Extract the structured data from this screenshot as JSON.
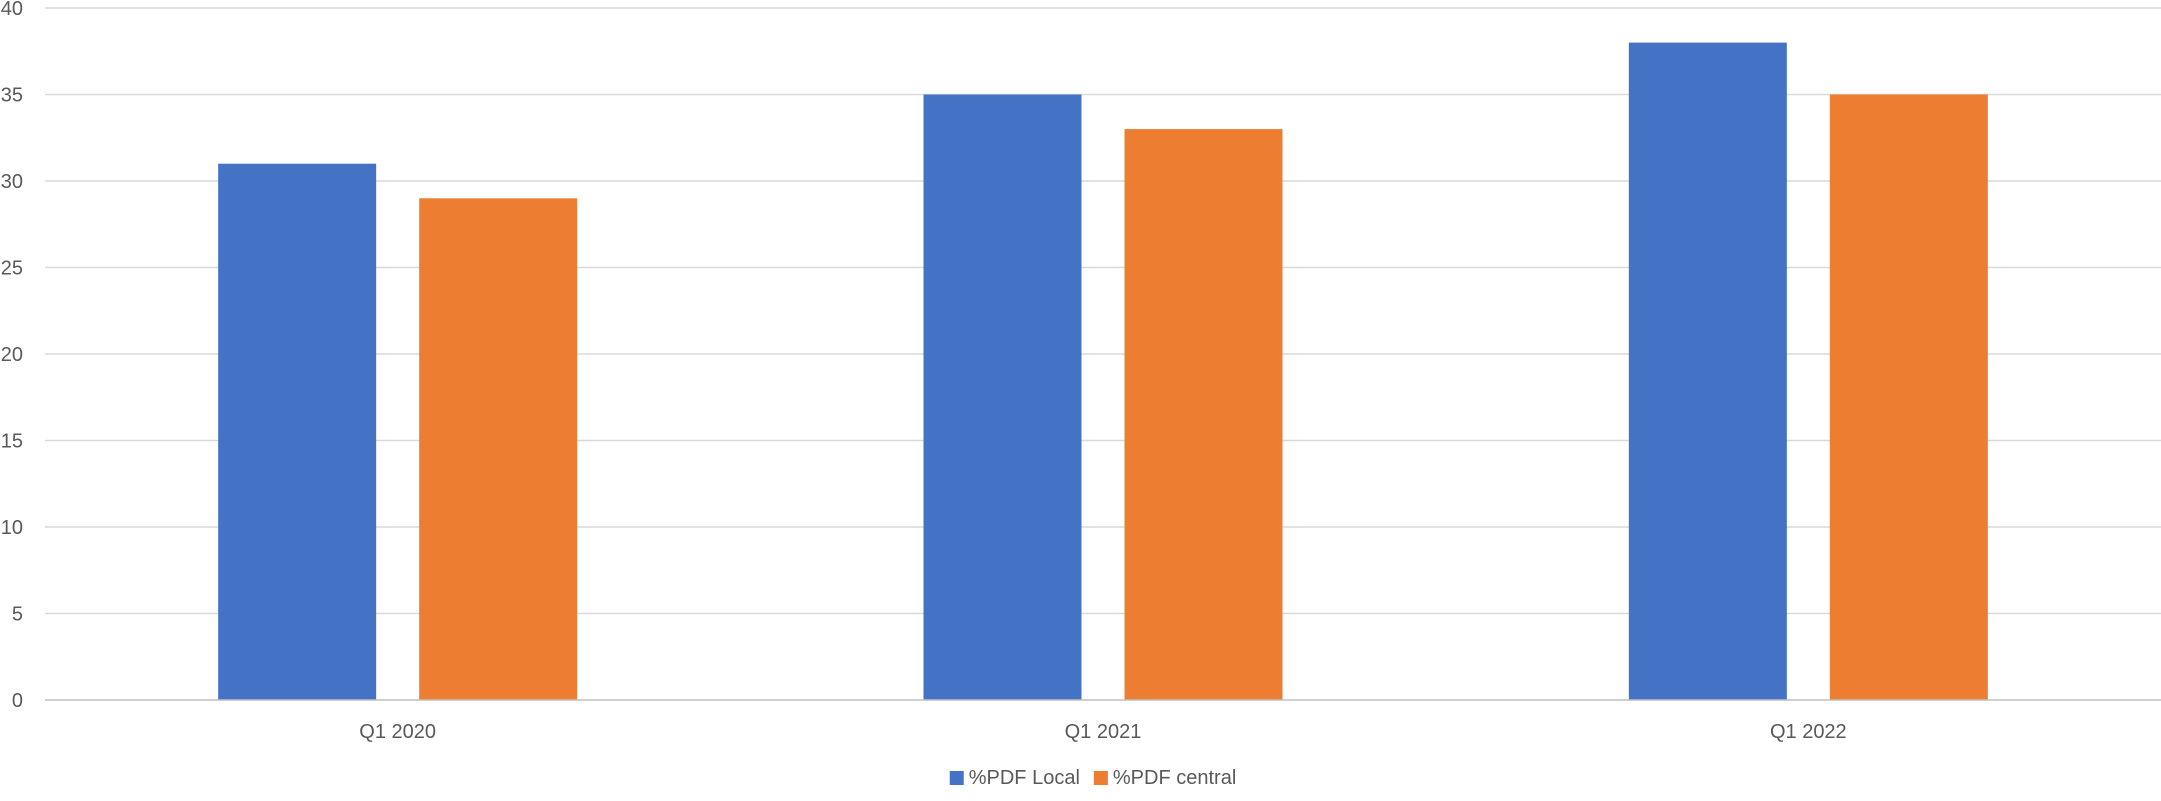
{
  "chart_data": {
    "type": "bar",
    "title": "",
    "xlabel": "",
    "ylabel": "",
    "categories": [
      "Q1 2020",
      "Q1 2021",
      "Q1 2022"
    ],
    "series": [
      {
        "name": "%PDF Local",
        "values": [
          31,
          35,
          38
        ],
        "color": "#4472C4"
      },
      {
        "name": "%PDF central",
        "values": [
          29,
          33,
          35
        ],
        "color": "#ED7D31"
      }
    ],
    "ylim": [
      0,
      40
    ],
    "yticks": [
      0,
      5,
      10,
      15,
      20,
      25,
      30,
      35,
      40
    ],
    "grid": true,
    "legend_position": "bottom"
  }
}
